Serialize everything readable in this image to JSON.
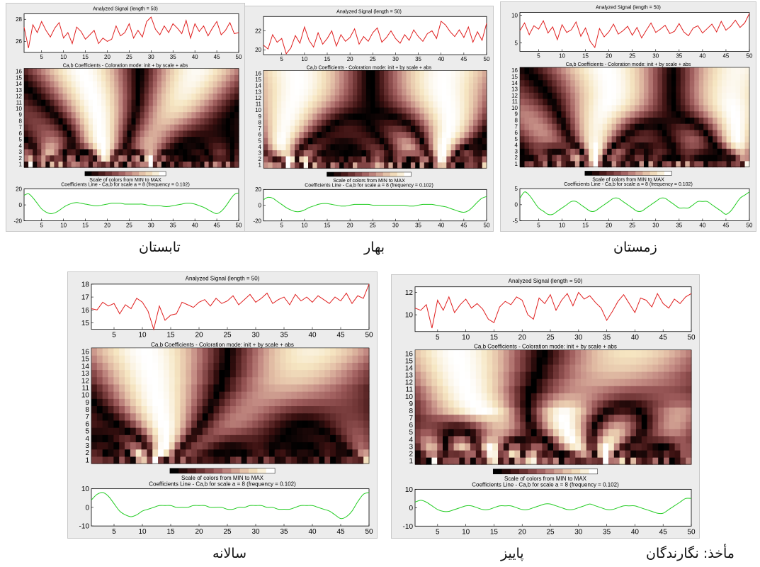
{
  "labels": {
    "analyzed_signal_title": "Analyzed Signal  (length = 50)",
    "coefficients_title": "Ca,b Coefficients - Coloration mode: init + by scale + abs",
    "colorbar_caption": "Scale of colors from MIN to MAX",
    "coef_line_title": "Coefficients Line - Ca,b for scale a = 8  (frequency =   0.102)"
  },
  "colors": {
    "signal_line": "#e02020",
    "coef_line": "#22cc22",
    "panel_background": "#ececec",
    "colormap": [
      "#000000",
      "#3a1010",
      "#6e3434",
      "#9c5a5a",
      "#c48c84",
      "#e3bfa6",
      "#f6e6c2",
      "#ffffff"
    ]
  },
  "captions": {
    "summer": "تابستان",
    "spring": "بهار",
    "winter": "زمستان",
    "annual": "سالانه",
    "autumn": "پاییز",
    "source": "مأخذ: نگارندگان"
  },
  "chart_data": [
    {
      "id": "summer",
      "type": "line",
      "title": "Analyzed Signal  (length = 50)",
      "x": [
        1,
        2,
        3,
        4,
        5,
        6,
        7,
        8,
        9,
        10,
        11,
        12,
        13,
        14,
        15,
        16,
        17,
        18,
        19,
        20,
        21,
        22,
        23,
        24,
        25,
        26,
        27,
        28,
        29,
        30,
        31,
        32,
        33,
        34,
        35,
        36,
        37,
        38,
        39,
        40,
        41,
        42,
        43,
        44,
        45,
        46,
        47,
        48,
        49,
        50
      ],
      "signal": [
        27.3,
        25.4,
        27.5,
        26.8,
        27.8,
        27.0,
        26.4,
        27.2,
        27.7,
        26.3,
        26.8,
        25.8,
        27.3,
        26.9,
        26.2,
        26.6,
        27.0,
        25.8,
        26.3,
        26.0,
        26.2,
        27.4,
        26.5,
        26.8,
        27.6,
        26.3,
        27.0,
        26.4,
        27.8,
        28.2,
        27.1,
        26.6,
        27.4,
        26.8,
        27.6,
        27.2,
        26.7,
        27.9,
        26.3,
        27.6,
        26.9,
        27.4,
        26.5,
        27.2,
        27.8,
        26.6,
        27.0,
        27.7,
        26.7,
        26.8
      ],
      "signal_ylim": [
        25,
        28.5
      ],
      "signal_yticks": [
        26,
        28
      ],
      "coef_line": [
        12,
        14,
        9,
        2,
        -5,
        -9,
        -11,
        -10,
        -7,
        -3,
        0,
        2,
        3,
        2,
        1,
        0,
        -1,
        -1,
        0,
        1,
        2,
        2,
        2,
        1,
        1,
        1,
        1,
        1,
        0,
        -1,
        -1,
        -1,
        -2,
        -2,
        -1,
        0,
        1,
        2,
        2,
        1,
        -1,
        -3,
        -6,
        -9,
        -11,
        -8,
        -2,
        6,
        13,
        15
      ],
      "coef_ylim": [
        -20,
        20
      ],
      "coef_yticks": [
        -20,
        0,
        20
      ],
      "scales": 16,
      "xticks": [
        5,
        10,
        15,
        20,
        25,
        30,
        35,
        40,
        45,
        50
      ]
    },
    {
      "id": "spring",
      "type": "line",
      "title": "Analyzed Signal  (length = 50)",
      "x": [
        1,
        2,
        3,
        4,
        5,
        6,
        7,
        8,
        9,
        10,
        11,
        12,
        13,
        14,
        15,
        16,
        17,
        18,
        19,
        20,
        21,
        22,
        23,
        24,
        25,
        26,
        27,
        28,
        29,
        30,
        31,
        32,
        33,
        34,
        35,
        36,
        37,
        38,
        39,
        40,
        41,
        42,
        43,
        44,
        45,
        46,
        47,
        48,
        49,
        50
      ],
      "signal": [
        20.5,
        20.1,
        21.6,
        20.8,
        21.2,
        19.6,
        20.2,
        21.5,
        20.7,
        22.4,
        21.0,
        20.3,
        21.8,
        20.6,
        21.2,
        22.0,
        20.4,
        21.6,
        20.9,
        21.3,
        22.2,
        20.6,
        21.4,
        20.9,
        21.8,
        22.3,
        20.8,
        21.3,
        22.0,
        21.2,
        20.7,
        21.6,
        21.0,
        22.1,
        21.4,
        20.9,
        21.7,
        22.0,
        21.2,
        23.0,
        22.6,
        21.9,
        21.4,
        22.1,
        21.3,
        22.4,
        20.8,
        21.9,
        21.0,
        22.8
      ],
      "signal_ylim": [
        19.5,
        23.5
      ],
      "signal_yticks": [
        20,
        22
      ],
      "coef_line": [
        7,
        10,
        9,
        5,
        1,
        -3,
        -6,
        -8,
        -8,
        -6,
        -3,
        -1,
        1,
        2,
        2,
        1,
        0,
        -1,
        -1,
        0,
        1,
        1,
        1,
        1,
        0,
        0,
        0,
        0,
        0,
        0,
        0,
        0,
        -1,
        -1,
        0,
        1,
        1,
        1,
        0,
        -1,
        -2,
        -4,
        -6,
        -8,
        -9,
        -7,
        -2,
        4,
        9,
        11
      ],
      "coef_ylim": [
        -20,
        20
      ],
      "coef_yticks": [
        -20,
        0,
        20
      ],
      "scales": 16,
      "xticks": [
        5,
        10,
        15,
        20,
        25,
        30,
        35,
        40,
        45,
        50
      ]
    },
    {
      "id": "winter",
      "type": "line",
      "title": "Analyzed Signal  (length = 50)",
      "x": [
        1,
        2,
        3,
        4,
        5,
        6,
        7,
        8,
        9,
        10,
        11,
        12,
        13,
        14,
        15,
        16,
        17,
        18,
        19,
        20,
        21,
        22,
        23,
        24,
        25,
        26,
        27,
        28,
        29,
        30,
        31,
        32,
        33,
        34,
        35,
        36,
        37,
        38,
        39,
        40,
        41,
        42,
        43,
        44,
        45,
        46,
        47,
        48,
        49,
        50
      ],
      "signal": [
        7.2,
        8.6,
        6.5,
        8.1,
        7.5,
        9.0,
        6.8,
        7.9,
        5.6,
        8.3,
        6.9,
        7.4,
        8.8,
        6.2,
        7.7,
        5.3,
        4.2,
        7.6,
        6.1,
        7.0,
        8.4,
        6.6,
        7.2,
        8.0,
        6.4,
        7.8,
        5.9,
        7.3,
        8.6,
        6.9,
        7.5,
        8.2,
        6.7,
        7.1,
        8.5,
        7.0,
        6.3,
        7.7,
        8.1,
        6.8,
        7.6,
        8.4,
        7.0,
        8.9,
        7.3,
        8.0,
        9.1,
        7.8,
        8.6,
        10.3
      ],
      "signal_ylim": [
        3.5,
        10.5
      ],
      "signal_yticks": [
        5,
        10
      ],
      "coef_line": [
        2,
        4,
        3,
        1,
        -1,
        -2,
        -3,
        -3,
        -2,
        -1,
        0,
        1,
        1,
        0,
        -1,
        -2,
        -2,
        -1,
        0,
        1,
        2,
        2,
        1,
        0,
        -1,
        -2,
        -2,
        -1,
        0,
        1,
        2,
        2,
        1,
        0,
        -1,
        -1,
        -1,
        0,
        1,
        1,
        1,
        0,
        -1,
        -2,
        -3,
        -2,
        0,
        2,
        3,
        4
      ],
      "coef_ylim": [
        -5,
        5
      ],
      "coef_yticks": [
        -5,
        0,
        5
      ],
      "scales": 16,
      "xticks": [
        5,
        10,
        15,
        20,
        25,
        30,
        35,
        40,
        45,
        50
      ]
    },
    {
      "id": "annual",
      "type": "line",
      "title": "Analyzed Signal  (length = 50)",
      "x": [
        1,
        2,
        3,
        4,
        5,
        6,
        7,
        8,
        9,
        10,
        11,
        12,
        13,
        14,
        15,
        16,
        17,
        18,
        19,
        20,
        21,
        22,
        23,
        24,
        25,
        26,
        27,
        28,
        29,
        30,
        31,
        32,
        33,
        34,
        35,
        36,
        37,
        38,
        39,
        40,
        41,
        42,
        43,
        44,
        45,
        46,
        47,
        48,
        49,
        50
      ],
      "signal": [
        16.1,
        16.0,
        16.6,
        16.3,
        16.5,
        15.7,
        16.4,
        16.1,
        16.9,
        16.6,
        15.9,
        14.5,
        16.3,
        15.2,
        15.6,
        15.7,
        16.6,
        16.4,
        16.2,
        16.6,
        16.8,
        16.3,
        16.9,
        16.5,
        16.7,
        17.1,
        16.4,
        16.8,
        17.2,
        16.6,
        16.9,
        17.3,
        16.5,
        16.8,
        17.0,
        16.4,
        17.2,
        16.7,
        17.0,
        16.6,
        17.1,
        16.8,
        16.5,
        17.0,
        16.7,
        17.3,
        16.5,
        17.1,
        16.9,
        18.0
      ],
      "signal_ylim": [
        14.5,
        18
      ],
      "signal_yticks": [
        15,
        16,
        17,
        18
      ],
      "coef_line": [
        4,
        7,
        8,
        6,
        2,
        -2,
        -4,
        -5,
        -4,
        -2,
        -1,
        0,
        1,
        1,
        1,
        0,
        0,
        0,
        1,
        1,
        1,
        0,
        0,
        0,
        -1,
        -1,
        0,
        0,
        1,
        1,
        1,
        0,
        0,
        -1,
        -1,
        -1,
        0,
        1,
        1,
        1,
        0,
        -1,
        -2,
        -4,
        -6,
        -5,
        -2,
        3,
        7,
        8
      ],
      "coef_ylim": [
        -10,
        10
      ],
      "coef_yticks": [
        -10,
        0,
        10
      ],
      "scales": 16,
      "xticks": [
        5,
        10,
        15,
        20,
        25,
        30,
        35,
        40,
        45,
        50
      ]
    },
    {
      "id": "autumn",
      "type": "line",
      "title": "Analyzed Signal  (length = 50)",
      "x": [
        1,
        2,
        3,
        4,
        5,
        6,
        7,
        8,
        9,
        10,
        11,
        12,
        13,
        14,
        15,
        16,
        17,
        18,
        19,
        20,
        21,
        22,
        23,
        24,
        25,
        26,
        27,
        28,
        29,
        30,
        31,
        32,
        33,
        34,
        35,
        36,
        37,
        38,
        39,
        40,
        41,
        42,
        43,
        44,
        45,
        46,
        47,
        48,
        49,
        50
      ],
      "signal": [
        10.6,
        10.4,
        10.9,
        8.8,
        11.3,
        10.4,
        11.6,
        10.2,
        10.9,
        11.4,
        10.6,
        11.0,
        10.5,
        9.6,
        9.3,
        10.7,
        11.2,
        10.9,
        11.6,
        11.3,
        10.0,
        9.6,
        11.5,
        11.0,
        11.8,
        10.4,
        11.3,
        11.9,
        10.8,
        12.0,
        11.4,
        11.7,
        11.1,
        10.6,
        9.5,
        10.3,
        11.2,
        11.8,
        11.0,
        10.2,
        11.5,
        11.3,
        10.7,
        11.9,
        11.0,
        10.6,
        11.4,
        11.0,
        11.6,
        11.9
      ],
      "signal_ylim": [
        8.5,
        12.5
      ],
      "signal_yticks": [
        10,
        12
      ],
      "coef_line": [
        3,
        4,
        3,
        1,
        -1,
        -2,
        -2,
        -1,
        0,
        1,
        1,
        0,
        -1,
        -1,
        0,
        1,
        1,
        1,
        0,
        -1,
        -1,
        0,
        1,
        2,
        2,
        1,
        0,
        -1,
        -1,
        0,
        1,
        2,
        1,
        0,
        -1,
        -1,
        0,
        1,
        1,
        1,
        0,
        -1,
        -2,
        -3,
        -3,
        -1,
        1,
        3,
        5,
        5
      ],
      "coef_ylim": [
        -10,
        10
      ],
      "coef_yticks": [
        -10,
        0,
        10
      ],
      "scales": 16,
      "xticks": [
        5,
        10,
        15,
        20,
        25,
        30,
        35,
        40,
        45,
        50
      ]
    }
  ]
}
